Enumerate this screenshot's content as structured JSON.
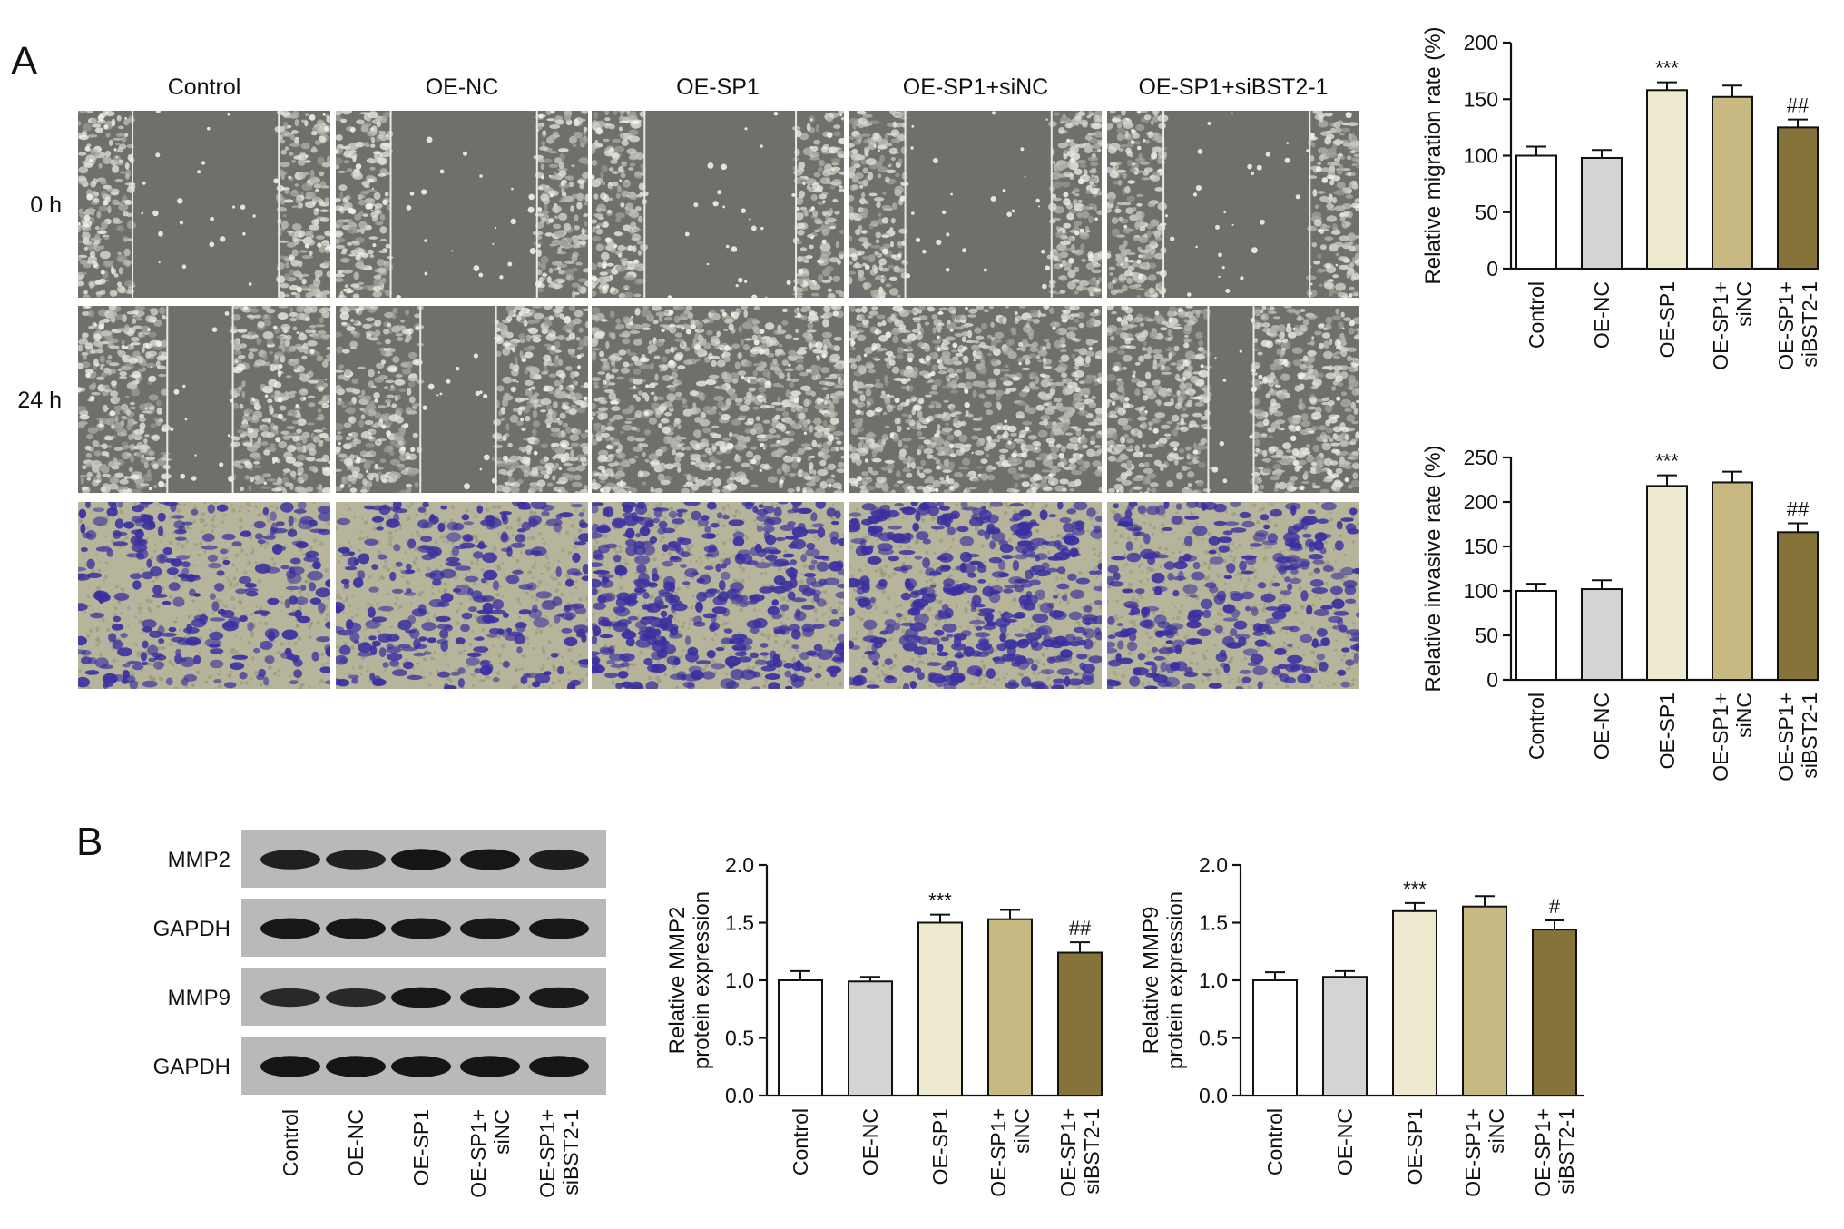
{
  "panel_letters": [
    "A",
    "B"
  ],
  "microscopy": {
    "columns": [
      "Control",
      "OE-NC",
      "OE-SP1",
      "OE-SP1+siNC",
      "OE-SP1+siBST2-1"
    ],
    "rows": [
      {
        "label": "0 h",
        "kind": "wound",
        "gap_fraction": [
          0.58,
          0.58,
          0.6,
          0.58,
          0.58
        ]
      },
      {
        "label": "24 h",
        "kind": "wound",
        "gap_fraction": [
          0.26,
          0.3,
          0.0,
          0.0,
          0.18
        ]
      },
      {
        "label": "",
        "kind": "transwell",
        "density": [
          0.35,
          0.35,
          0.75,
          0.7,
          0.45
        ]
      }
    ]
  },
  "western_blot": {
    "bands": [
      "MMP2",
      "GAPDH",
      "MMP9",
      "GAPDH"
    ],
    "lanes": [
      "Control",
      "OE-NC",
      "OE-SP1",
      "OE-SP1+ siNC",
      "OE-SP1+ siBST2-1"
    ],
    "intensity": [
      [
        0.8,
        0.78,
        0.95,
        0.92,
        0.85
      ],
      [
        0.92,
        0.92,
        0.92,
        0.92,
        0.92
      ],
      [
        0.7,
        0.68,
        0.9,
        0.92,
        0.88
      ],
      [
        0.95,
        0.95,
        0.95,
        0.95,
        0.95
      ]
    ]
  },
  "colors": {
    "bars": [
      "#ffffff",
      "#d4d4d4",
      "#eeeacf",
      "#c8b882",
      "#85733a"
    ],
    "gel_bg": "#b9b9b9",
    "band": "#111111",
    "wound_bg": "#6f6f6b",
    "transwell_bg": "#b6b49a",
    "transwell_cell": "#3a2fa0"
  },
  "chart_data": [
    {
      "type": "bar",
      "id": "migration",
      "categories": [
        "Control",
        "OE-NC",
        "OE-SP1",
        "OE-SP1+ siNC",
        "OE-SP1+ siBST2-1"
      ],
      "values": [
        100,
        98,
        158,
        152,
        125
      ],
      "errors": [
        8,
        7,
        7,
        10,
        7
      ],
      "significance": [
        "",
        "",
        "***",
        "",
        "##"
      ],
      "ylabel": "Relative migration rate (%)",
      "ylim": [
        0,
        200
      ],
      "yticks": [
        0,
        50,
        100,
        150,
        200
      ],
      "tick_labels": [
        "0",
        "50",
        "100",
        "150",
        "200"
      ],
      "grid": false
    },
    {
      "type": "bar",
      "id": "invasion",
      "categories": [
        "Control",
        "OE-NC",
        "OE-SP1",
        "OE-SP1+ siNC",
        "OE-SP1+ siBST2-1"
      ],
      "values": [
        100,
        102,
        218,
        222,
        166
      ],
      "errors": [
        8,
        10,
        12,
        12,
        10
      ],
      "significance": [
        "",
        "",
        "***",
        "",
        "##"
      ],
      "ylabel": "Relative invasive rate (%)",
      "ylim": [
        0,
        250
      ],
      "yticks": [
        0,
        50,
        100,
        150,
        200,
        250
      ],
      "tick_labels": [
        "0",
        "50",
        "100",
        "150",
        "200",
        "250"
      ],
      "grid": false
    },
    {
      "type": "bar",
      "id": "mmp2",
      "categories": [
        "Control",
        "OE-NC",
        "OE-SP1",
        "OE-SP1+ siNC",
        "OE-SP1+ siBST2-1"
      ],
      "values": [
        1.0,
        0.99,
        1.5,
        1.53,
        1.24
      ],
      "errors": [
        0.08,
        0.04,
        0.07,
        0.08,
        0.09
      ],
      "significance": [
        "",
        "",
        "***",
        "",
        "##"
      ],
      "ylabel": "Relative MMP2 protein expression",
      "ylim": [
        0,
        2.0
      ],
      "yticks": [
        0,
        0.5,
        1.0,
        1.5,
        2.0
      ],
      "tick_labels": [
        "0.0",
        "0.5",
        "1.0",
        "1.5",
        "2.0"
      ],
      "grid": false
    },
    {
      "type": "bar",
      "id": "mmp9",
      "categories": [
        "Control",
        "OE-NC",
        "OE-SP1",
        "OE-SP1+ siNC",
        "OE-SP1+ siBST2-1"
      ],
      "values": [
        1.0,
        1.03,
        1.6,
        1.64,
        1.44
      ],
      "errors": [
        0.07,
        0.05,
        0.07,
        0.09,
        0.08
      ],
      "significance": [
        "",
        "",
        "***",
        "",
        "#"
      ],
      "ylabel": "Relative MMP9 protein expression",
      "ylim": [
        0,
        2.0
      ],
      "yticks": [
        0,
        0.5,
        1.0,
        1.5,
        2.0
      ],
      "tick_labels": [
        "0.0",
        "0.5",
        "1.0",
        "1.5",
        "2.0"
      ],
      "grid": false
    }
  ]
}
